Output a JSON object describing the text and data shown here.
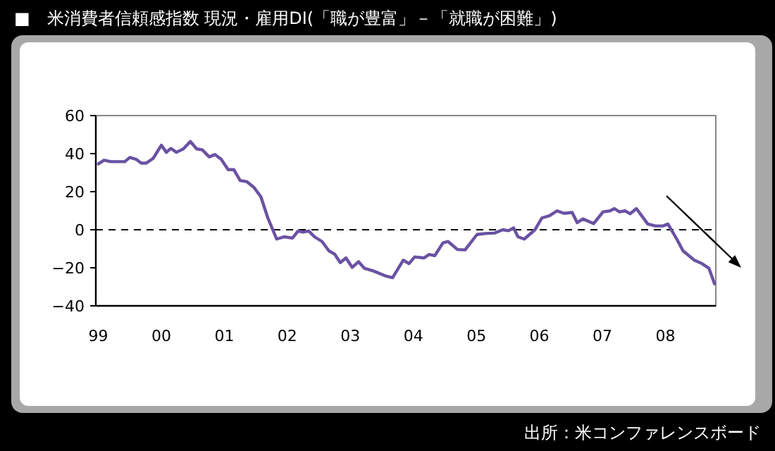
{
  "chart_data": {
    "type": "line",
    "title": "■　米消費者信頼感指数 現況・雇用DI(「職が豊富」－「就職が困難」)",
    "annotations": [
      "出所：米コンファレンスボード"
    ],
    "series": [
      {
        "color": "#6a52a3",
        "x": [
          1999.0,
          1999.09,
          1999.2,
          1999.42,
          1999.5,
          1999.6,
          1999.68,
          1999.76,
          1999.87,
          2000.0,
          2000.08,
          2000.15,
          2000.24,
          2000.35,
          2000.46,
          2000.56,
          2000.65,
          2000.76,
          2000.85,
          2000.95,
          2001.06,
          2001.15,
          2001.25,
          2001.36,
          2001.47,
          2001.58,
          2001.69,
          2001.83,
          2001.95,
          2002.08,
          2002.17,
          2002.25,
          2002.34,
          2002.43,
          2002.55,
          2002.66,
          2002.75,
          2002.84,
          2002.93,
          2003.03,
          2003.13,
          2003.22,
          2003.37,
          2003.55,
          2003.67,
          2003.84,
          2003.93,
          2004.02,
          2004.17,
          2004.25,
          2004.34,
          2004.47,
          2004.55,
          2004.7,
          2004.82,
          2005.01,
          2005.14,
          2005.29,
          2005.42,
          2005.51,
          2005.59,
          2005.66,
          2005.76,
          2005.93,
          2006.04,
          2006.16,
          2006.28,
          2006.39,
          2006.52,
          2006.6,
          2006.69,
          2006.86,
          2007.01,
          2007.12,
          2007.19,
          2007.27,
          2007.36,
          2007.44,
          2007.54,
          2007.72,
          2007.84,
          2007.96,
          2008.04,
          2008.18,
          2008.28,
          2008.46,
          2008.58,
          2008.69,
          2008.78
        ],
        "values": [
          34.6,
          36.5,
          35.8,
          35.8,
          38,
          37,
          35,
          35,
          37.5,
          44.4,
          40.7,
          42.7,
          40.7,
          42.5,
          46.4,
          42.5,
          42,
          38.3,
          39.5,
          37,
          31.6,
          31.6,
          25.9,
          25.2,
          22.2,
          17.3,
          6.2,
          -4.9,
          -3.7,
          -4.4,
          -0.7,
          -1.2,
          -0.7,
          -3.7,
          -6.2,
          -11.1,
          -12.8,
          -17.3,
          -14.8,
          -19.8,
          -16.8,
          -20.2,
          -21.7,
          -24.2,
          -25.2,
          -16,
          -17.8,
          -14.3,
          -14.8,
          -13,
          -13.6,
          -6.9,
          -6.2,
          -10.4,
          -10.6,
          -2.5,
          -2,
          -1.7,
          0,
          -0.5,
          1,
          -3.7,
          -4.9,
          0,
          6.2,
          7.4,
          9.9,
          8.6,
          9.1,
          3.7,
          5.7,
          3.2,
          9.4,
          9.9,
          11.1,
          9.4,
          9.9,
          8.4,
          11.1,
          3,
          2,
          2,
          3,
          -4.9,
          -11.1,
          -16,
          -17.8,
          -20.2,
          -28.4
        ]
      }
    ],
    "xlim": [
      1998.96,
      2008.8
    ],
    "xticks": [
      {
        "value": 1999,
        "label": "99"
      },
      {
        "value": 2000,
        "label": "00"
      },
      {
        "value": 2001,
        "label": "01"
      },
      {
        "value": 2002,
        "label": "02"
      },
      {
        "value": 2003,
        "label": "03"
      },
      {
        "value": 2004,
        "label": "04"
      },
      {
        "value": 2005,
        "label": "05"
      },
      {
        "value": 2006,
        "label": "06"
      },
      {
        "value": 2007,
        "label": "07"
      },
      {
        "value": 2008,
        "label": "08"
      }
    ],
    "ylim": [
      -40,
      60
    ],
    "yticks": [
      -40,
      -20,
      0,
      20,
      40,
      60
    ],
    "ref_lines": [
      {
        "axis": "y",
        "value": 0,
        "line_style": "dashed",
        "color": "#000000"
      }
    ],
    "line_style": "solid"
  }
}
